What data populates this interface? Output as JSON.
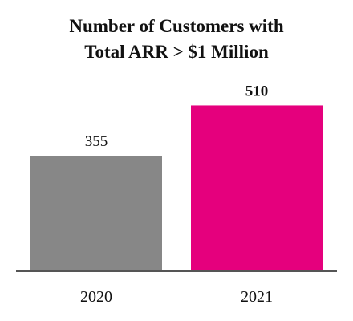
{
  "chart_data": {
    "type": "bar",
    "title_lines": [
      "Number of Customers with",
      "Total ARR > $1 Million"
    ],
    "categories": [
      "2020",
      "2021"
    ],
    "values": [
      355,
      510
    ],
    "value_labels": [
      "355",
      "510"
    ],
    "value_label_bold": [
      false,
      true
    ],
    "colors": [
      "#878787",
      "#e5007d"
    ],
    "axis_color": "#555555",
    "xlabel": "",
    "ylabel": "",
    "ylim": [
      0,
      600
    ],
    "grid": false,
    "legend": "none"
  }
}
